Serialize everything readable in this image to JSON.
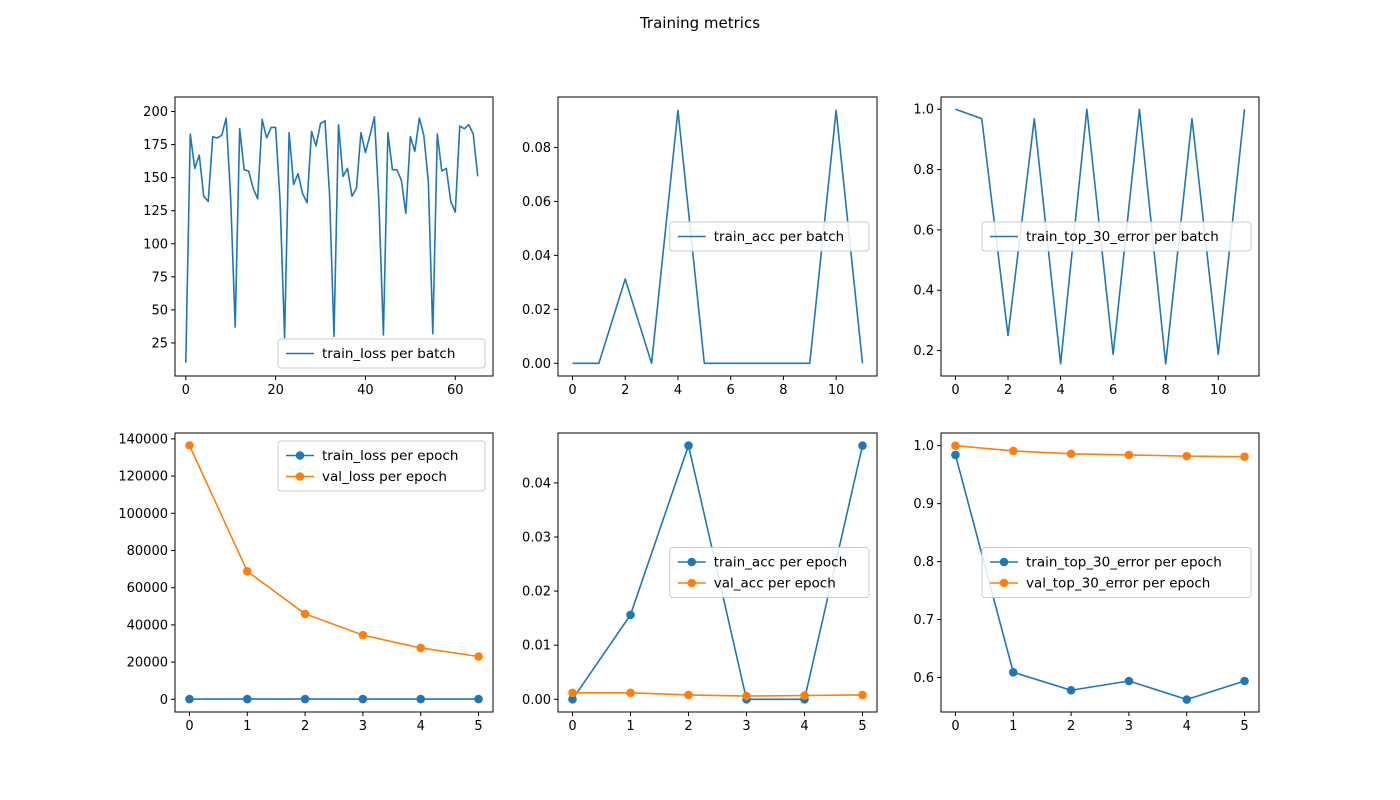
{
  "figure": {
    "title": "Training metrics",
    "colors": {
      "blue": "#1f77b4",
      "orange": "#ff7f0e"
    }
  },
  "chart_data": [
    {
      "type": "line",
      "legend_position": "bottom-right",
      "xlim": [
        -2.4,
        68.4
      ],
      "ylim": [
        0,
        211
      ],
      "xticks": [
        0,
        20,
        40,
        60
      ],
      "yticks": [
        25,
        50,
        75,
        100,
        125,
        150,
        175,
        200
      ],
      "series": [
        {
          "name": "train_loss per batch",
          "color": "#1f77b4",
          "markers": false,
          "x": [
            0,
            1,
            2,
            3,
            4,
            5,
            6,
            7,
            8,
            9,
            10,
            11,
            12,
            13,
            14,
            15,
            16,
            17,
            18,
            19,
            20,
            21,
            22,
            23,
            24,
            25,
            26,
            27,
            28,
            29,
            30,
            31,
            32,
            33,
            34,
            35,
            36,
            37,
            38,
            39,
            40,
            41,
            42,
            43,
            44,
            45,
            46,
            47,
            48,
            49,
            50,
            51,
            52,
            53,
            54,
            55,
            56,
            57,
            58,
            59,
            60,
            61,
            62,
            63,
            64,
            65
          ],
          "y": [
            10,
            183,
            157,
            167,
            136,
            132,
            181,
            180,
            182,
            195,
            134,
            37,
            187,
            156,
            155,
            142,
            134,
            194,
            180,
            188,
            188,
            132,
            29,
            184,
            145,
            153,
            138,
            131,
            185,
            174,
            191,
            193,
            138,
            30,
            190,
            151,
            157,
            136,
            142,
            184,
            169,
            182,
            196,
            131,
            31,
            184,
            156,
            156,
            148,
            123,
            181,
            170,
            195,
            182,
            147,
            32,
            183,
            155,
            157,
            132,
            124,
            189,
            187,
            190,
            183,
            151
          ]
        }
      ]
    },
    {
      "type": "line",
      "legend_position": "center-right",
      "xlim": [
        -0.55,
        11.55
      ],
      "ylim": [
        -0.0047,
        0.0987
      ],
      "xticks": [
        0,
        2,
        4,
        6,
        8,
        10
      ],
      "yticks": [
        0.0,
        0.02,
        0.04,
        0.06,
        0.08
      ],
      "ytick_labels": [
        "0.00",
        "0.02",
        "0.04",
        "0.06",
        "0.08"
      ],
      "series": [
        {
          "name": "train_acc per batch",
          "color": "#1f77b4",
          "markers": false,
          "x": [
            0,
            1,
            2,
            3,
            4,
            5,
            6,
            7,
            8,
            9,
            10,
            11
          ],
          "y": [
            0,
            0,
            0.03125,
            0,
            0.09375,
            0,
            0,
            0,
            0,
            0,
            0.09375,
            0
          ]
        }
      ]
    },
    {
      "type": "line",
      "legend_position": "center-right",
      "xlim": [
        -0.55,
        11.55
      ],
      "ylim": [
        0.1157,
        1.0406
      ],
      "xticks": [
        0,
        2,
        4,
        6,
        8,
        10
      ],
      "yticks": [
        0.2,
        0.4,
        0.6,
        0.8,
        1.0
      ],
      "ytick_labels": [
        "0.2",
        "0.4",
        "0.6",
        "0.8",
        "1.0"
      ],
      "series": [
        {
          "name": "train_top_30_error per batch",
          "color": "#1f77b4",
          "markers": false,
          "x": [
            0,
            1,
            2,
            3,
            4,
            5,
            6,
            7,
            8,
            9,
            10,
            11
          ],
          "y": [
            1.0,
            0.96875,
            0.25,
            0.96875,
            0.15625,
            1.0,
            0.1875,
            1.0,
            0.15625,
            0.96875,
            0.1875,
            1.0
          ]
        }
      ]
    },
    {
      "type": "line",
      "legend_position": "top-right",
      "xlim": [
        -0.25,
        5.25
      ],
      "ylim": [
        -6820,
        143150
      ],
      "xticks": [
        0,
        1,
        2,
        3,
        4,
        5
      ],
      "yticks": [
        0,
        20000,
        40000,
        60000,
        80000,
        100000,
        120000,
        140000
      ],
      "series": [
        {
          "name": "train_loss per epoch",
          "color": "#1f77b4",
          "markers": true,
          "x": [
            0,
            1,
            2,
            3,
            4,
            5
          ],
          "y": [
            156,
            154,
            155,
            153,
            155,
            154
          ]
        },
        {
          "name": "val_loss per epoch",
          "color": "#ff7f0e",
          "markers": true,
          "x": [
            0,
            1,
            2,
            3,
            4,
            5
          ],
          "y": [
            136500,
            68800,
            45900,
            34500,
            27600,
            23000
          ]
        }
      ]
    },
    {
      "type": "line",
      "legend_position": "center-right",
      "xlim": [
        -0.25,
        5.25
      ],
      "ylim": [
        -0.00235,
        0.04922
      ],
      "xticks": [
        0,
        1,
        2,
        3,
        4,
        5
      ],
      "yticks": [
        0.0,
        0.01,
        0.02,
        0.03,
        0.04
      ],
      "ytick_labels": [
        "0.00",
        "0.01",
        "0.02",
        "0.03",
        "0.04"
      ],
      "series": [
        {
          "name": "train_acc per epoch",
          "color": "#1f77b4",
          "markers": true,
          "x": [
            0,
            1,
            2,
            3,
            4,
            5
          ],
          "y": [
            0,
            0.0156,
            0.0469,
            0,
            0,
            0.0469
          ]
        },
        {
          "name": "val_acc per epoch",
          "color": "#ff7f0e",
          "markers": true,
          "x": [
            0,
            1,
            2,
            3,
            4,
            5
          ],
          "y": [
            0.0012,
            0.0012,
            0.0008,
            0.0006,
            0.0007,
            0.0008
          ]
        }
      ]
    },
    {
      "type": "line",
      "legend_position": "center-right",
      "xlim": [
        -0.25,
        5.25
      ],
      "ylim": [
        0.5405,
        1.0219
      ],
      "xticks": [
        0,
        1,
        2,
        3,
        4,
        5
      ],
      "yticks": [
        0.6,
        0.7,
        0.8,
        0.9,
        1.0
      ],
      "ytick_labels": [
        "0.6",
        "0.7",
        "0.8",
        "0.9",
        "1.0"
      ],
      "series": [
        {
          "name": "train_top_30_error per epoch",
          "color": "#1f77b4",
          "markers": true,
          "x": [
            0,
            1,
            2,
            3,
            4,
            5
          ],
          "y": [
            0.984,
            0.609,
            0.578,
            0.594,
            0.562,
            0.594
          ]
        },
        {
          "name": "val_top_30_error per epoch",
          "color": "#ff7f0e",
          "markers": true,
          "x": [
            0,
            1,
            2,
            3,
            4,
            5
          ],
          "y": [
            1.0,
            0.991,
            0.986,
            0.984,
            0.982,
            0.981
          ]
        }
      ]
    }
  ]
}
